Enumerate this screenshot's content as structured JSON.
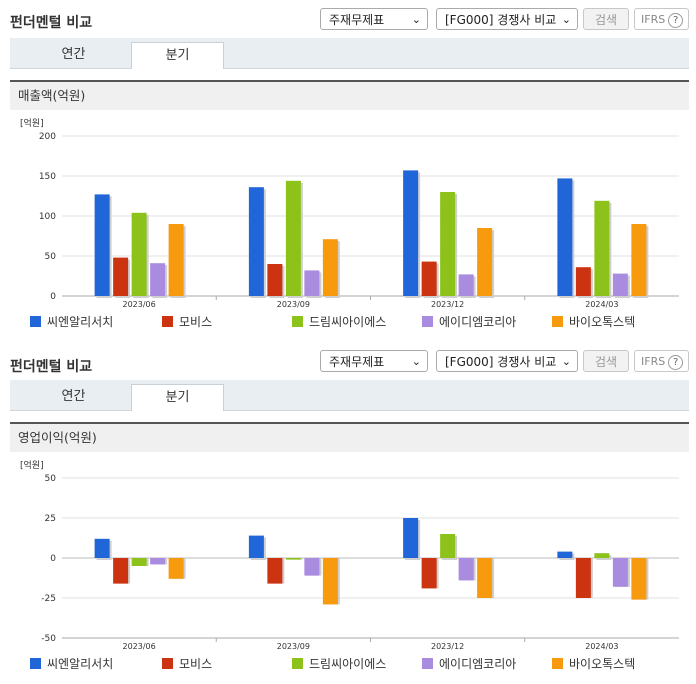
{
  "ui": {
    "title": "펀더멘털 비교",
    "select1": "주재무제표",
    "select2": "[FG000] 경쟁사 비교",
    "search_btn": "검색",
    "ifrs": "IFRS",
    "ifrs_help": "?",
    "tabs": [
      "연간",
      "분기"
    ],
    "active_tab": "분기"
  },
  "chart_data": [
    {
      "type": "bar",
      "title": "매출액(억원)",
      "unit": "[억원]",
      "categories": [
        "2023/06",
        "2023/09",
        "2023/12",
        "2024/03"
      ],
      "ylim": [
        0,
        200
      ],
      "yticks": [
        0,
        50,
        100,
        150,
        200
      ],
      "grid": true,
      "legend_position": "bottom",
      "series": [
        {
          "name": "씨엔알리서치",
          "color": "#2166d9",
          "values": [
            127,
            136,
            157,
            147
          ]
        },
        {
          "name": "모비스",
          "color": "#cc3311",
          "values": [
            48,
            40,
            43,
            36
          ]
        },
        {
          "name": "드림씨아이에스",
          "color": "#8cc21a",
          "values": [
            104,
            144,
            130,
            119
          ]
        },
        {
          "name": "에이디엠코리아",
          "color": "#a98be0",
          "values": [
            41,
            32,
            27,
            28
          ]
        },
        {
          "name": "바이오톡스텍",
          "color": "#f89a0e",
          "values": [
            90,
            71,
            85,
            90
          ]
        }
      ]
    },
    {
      "type": "bar",
      "title": "영업이익(억원)",
      "unit": "[억원]",
      "categories": [
        "2023/06",
        "2023/09",
        "2023/12",
        "2024/03"
      ],
      "ylim": [
        -50,
        50
      ],
      "yticks": [
        -50,
        -25,
        0,
        25,
        50
      ],
      "grid": true,
      "legend_position": "bottom",
      "series": [
        {
          "name": "씨엔알리서치",
          "color": "#2166d9",
          "values": [
            12,
            14,
            25,
            4
          ]
        },
        {
          "name": "모비스",
          "color": "#cc3311",
          "values": [
            -16,
            -16,
            -19,
            -25
          ]
        },
        {
          "name": "드림씨아이에스",
          "color": "#8cc21a",
          "values": [
            -5,
            -1,
            15,
            3
          ]
        },
        {
          "name": "에이디엠코리아",
          "color": "#a98be0",
          "values": [
            -4,
            -11,
            -14,
            -18
          ]
        },
        {
          "name": "바이오톡스텍",
          "color": "#f89a0e",
          "values": [
            -13,
            -29,
            -25,
            -26
          ]
        }
      ]
    }
  ]
}
